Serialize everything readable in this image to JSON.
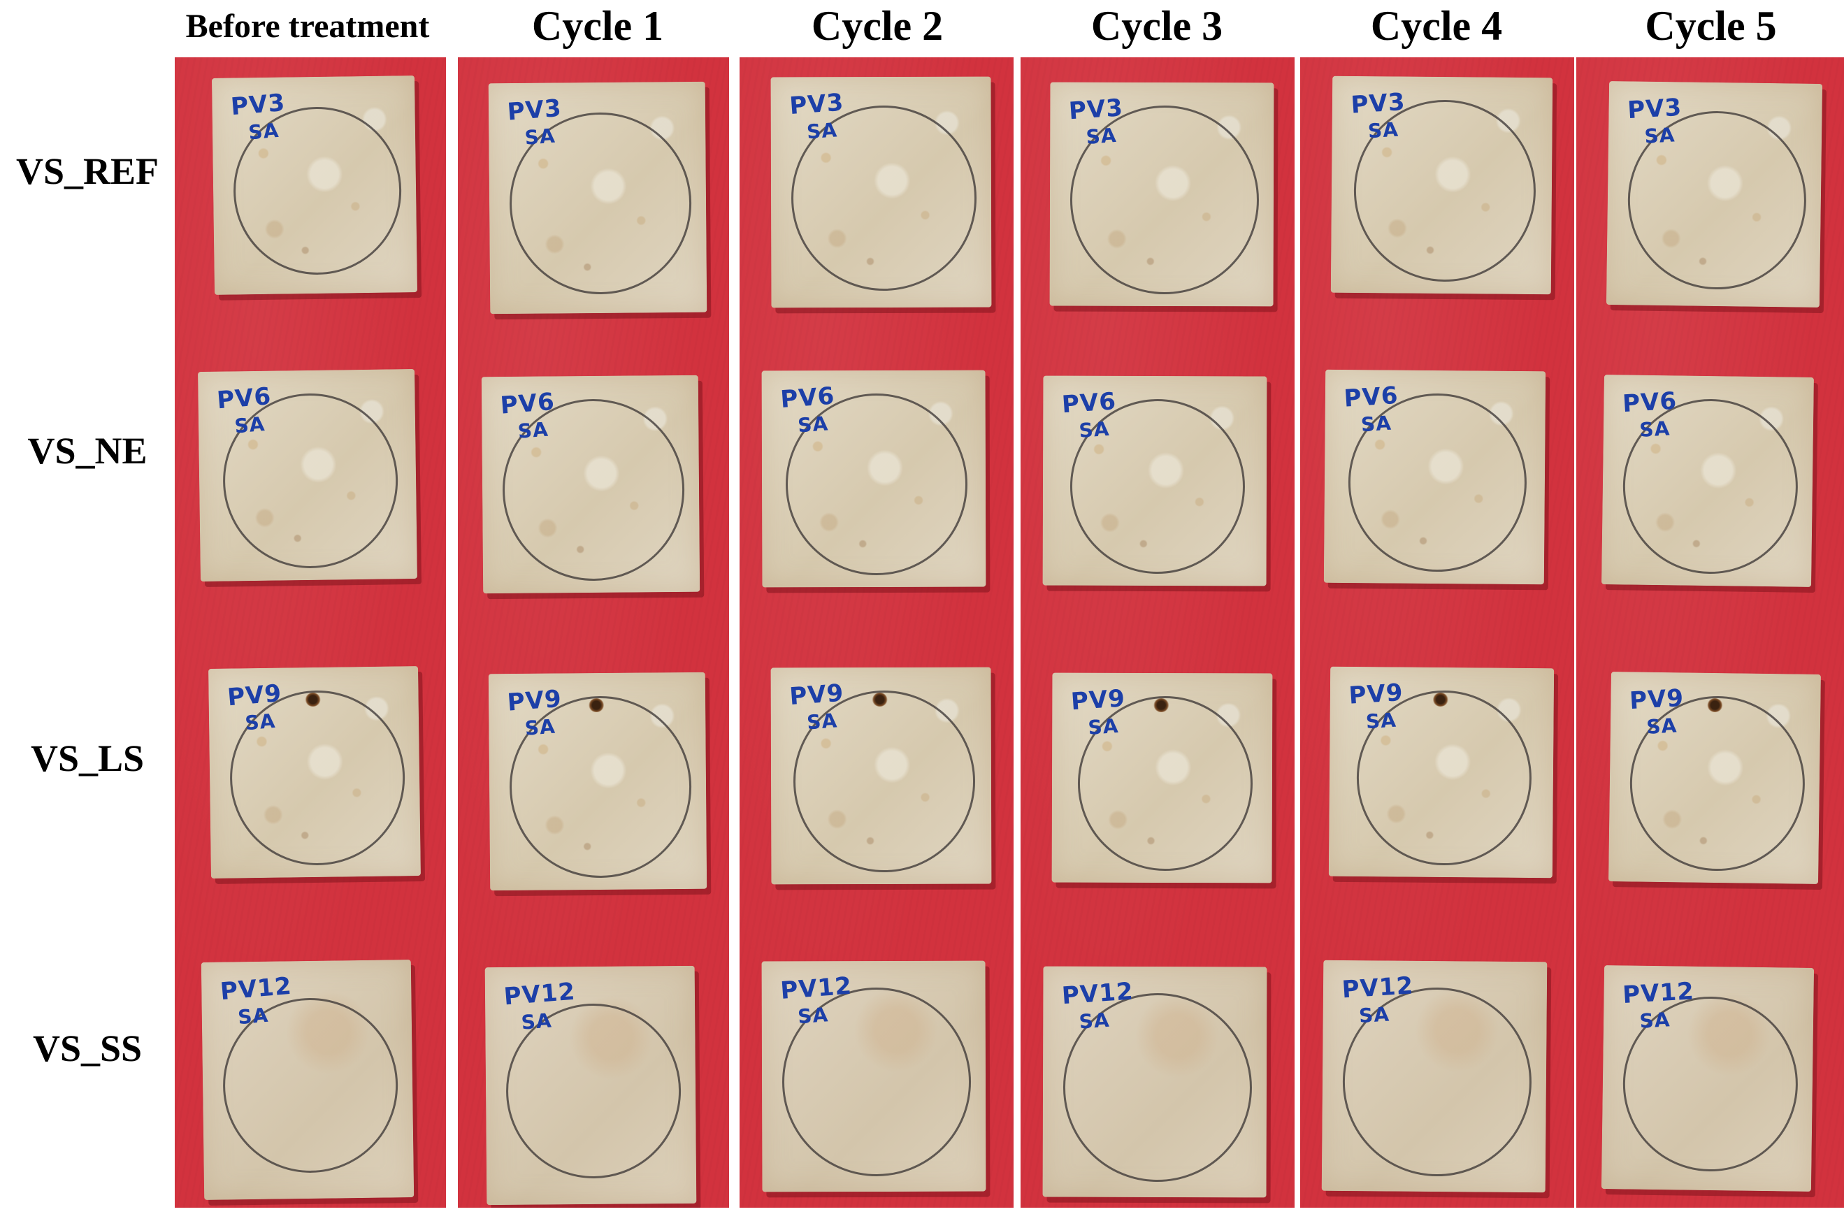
{
  "columns": [
    "Before treatment",
    "Cycle 1",
    "Cycle 2",
    "Cycle 3",
    "Cycle 4",
    "Cycle 5"
  ],
  "rows": [
    {
      "label": "VS_REF",
      "code": "PV3",
      "sub": "SA"
    },
    {
      "label": "VS_NE",
      "code": "PV6",
      "sub": "SA"
    },
    {
      "label": "VS_LS",
      "code": "PV9",
      "sub": "SA"
    },
    {
      "label": "VS_SS",
      "code": "PV12",
      "sub": "SA"
    }
  ],
  "colors": {
    "background_panel": "#d2323e",
    "stone": "#dcd2bd",
    "marker_ink": "#1c3fa8",
    "pencil_circle": "#373232"
  }
}
